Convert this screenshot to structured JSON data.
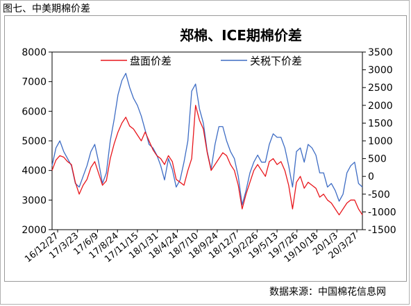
{
  "figure": {
    "caption": "图七、中美期棉价差",
    "source": "数据来源：中国棉花信息网"
  },
  "chart_data": {
    "type": "line",
    "title": "郑棉、ICE期棉价差",
    "legend_position": "top-center",
    "grid": false,
    "x_tick_labels": [
      "16/12/27",
      "17/3/23",
      "17/6/9",
      "17/8/24",
      "17/11/15",
      "18/1/31",
      "18/4/24",
      "18/7/10",
      "18/9/24",
      "18/12/7",
      "19/2/26",
      "19/5/13",
      "19/7/26",
      "19/10/18",
      "20/1/3",
      "20/3/27"
    ],
    "y_left": {
      "range": [
        2000,
        8000
      ],
      "ticks": [
        2000,
        3000,
        4000,
        5000,
        6000,
        7000,
        8000
      ]
    },
    "y_right": {
      "range": [
        -1500,
        3500
      ],
      "ticks": [
        -1500,
        -1000,
        -500,
        0,
        500,
        1000,
        1500,
        2000,
        2500,
        3000,
        3500
      ]
    },
    "series": [
      {
        "name": "盘面价差",
        "axis": "left",
        "color": "#e8151b",
        "values": [
          4000,
          4350,
          4500,
          4450,
          4300,
          4200,
          3600,
          3200,
          3500,
          3700,
          4100,
          4300,
          3900,
          3500,
          3650,
          4400,
          4900,
          5300,
          5600,
          5800,
          5500,
          5400,
          5200,
          5000,
          5300,
          5000,
          4700,
          4500,
          4400,
          4200,
          4500,
          4300,
          3700,
          3600,
          3500,
          4000,
          4400,
          6200,
          5700,
          5400,
          4600,
          4000,
          4200,
          4400,
          4600,
          4500,
          4200,
          4000,
          3500,
          2700,
          3200,
          3600,
          4000,
          4200,
          4000,
          3800,
          4300,
          4400,
          4200,
          4300,
          4000,
          3500,
          2700,
          3600,
          3800,
          3400,
          3600,
          3500,
          3400,
          3100,
          3200,
          3000,
          2900,
          2700,
          2500,
          2700,
          2900,
          3000,
          3000,
          2700,
          2500
        ]
      },
      {
        "name": "关税下价差",
        "axis": "right",
        "color": "#3d6cc4",
        "values": [
          300,
          800,
          1000,
          700,
          500,
          300,
          -200,
          -300,
          0,
          300,
          700,
          900,
          400,
          -200,
          100,
          1000,
          1600,
          2300,
          2700,
          2900,
          2500,
          2200,
          2000,
          1700,
          1300,
          900,
          800,
          600,
          300,
          -100,
          500,
          200,
          -300,
          -100,
          400,
          1000,
          2400,
          2600,
          1900,
          1500,
          700,
          200,
          900,
          1400,
          1400,
          1000,
          700,
          500,
          0,
          -800,
          -400,
          100,
          400,
          600,
          400,
          400,
          900,
          1200,
          1100,
          1100,
          800,
          300,
          -300,
          700,
          800,
          400,
          900,
          800,
          600,
          100,
          100,
          -300,
          -200,
          -400,
          -700,
          -500,
          100,
          300,
          400,
          -200,
          -300
        ]
      }
    ]
  }
}
